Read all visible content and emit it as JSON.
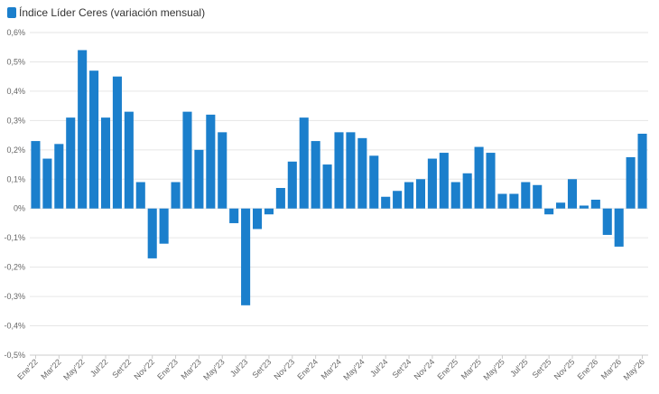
{
  "colors": {
    "bar": "#1b7fcc",
    "grid": "#e6e6e6",
    "axis": "#cccccc",
    "text": "#666666"
  },
  "chart_data": {
    "type": "bar",
    "legend": {
      "label": "Índice Líder Ceres (variación mensual)",
      "position": "top-left"
    },
    "grid": true,
    "ylim": [
      -0.5,
      0.6
    ],
    "yticks": [
      {
        "value": 0.6,
        "label": "0,6%"
      },
      {
        "value": 0.5,
        "label": "0,5%"
      },
      {
        "value": 0.4,
        "label": "0,4%"
      },
      {
        "value": 0.3,
        "label": "0,3%"
      },
      {
        "value": 0.2,
        "label": "0,2%"
      },
      {
        "value": 0.1,
        "label": "0,1%"
      },
      {
        "value": 0,
        "label": "0%"
      },
      {
        "value": -0.1,
        "label": "-0,1%"
      },
      {
        "value": -0.2,
        "label": "-0,2%"
      },
      {
        "value": -0.3,
        "label": "-0,3%"
      },
      {
        "value": -0.4,
        "label": "-0,4%"
      },
      {
        "value": -0.5,
        "label": "-0,5%"
      }
    ],
    "categories": [
      "Ene'22",
      "Feb'22",
      "Mar'22",
      "Abr'22",
      "May'22",
      "Jun'22",
      "Jul'22",
      "Ago'22",
      "Set'22",
      "Oct'22",
      "Nov'22",
      "Dic'22",
      "Ene'23",
      "Feb'23",
      "Mar'23",
      "Abr'23",
      "May'23",
      "Jun'23",
      "Jul'23",
      "Ago'23",
      "Set'23",
      "Oct'23",
      "Nov'23",
      "Dic'23",
      "Ene'24",
      "Feb'24",
      "Mar'24",
      "Abr'24",
      "May'24",
      "Jun'24",
      "Jul'24",
      "Ago'24",
      "Set'24",
      "Oct'24",
      "Nov'24",
      "Dic'24",
      "Ene'25",
      "Feb'25",
      "Mar'25",
      "Abr'25",
      "May'25",
      "Jun'25",
      "Jul'25",
      "Ago'25",
      "Set'25",
      "Oct'25",
      "Nov'25",
      "Dic'25",
      "Ene'26",
      "Feb'26",
      "Mar'26",
      "Abr'26",
      "May'26"
    ],
    "x_tick_labels": [
      "Ene'22",
      "Mar'22",
      "May'22",
      "Jul'22",
      "Set'22",
      "Nov'22",
      "Ene'23",
      "Mar'23",
      "May'23",
      "Jul'23",
      "Set'23",
      "Nov'23",
      "Ene'24",
      "Mar'24",
      "May'24",
      "Jul'24",
      "Set'24",
      "Nov'24",
      "Ene'25",
      "Mar'25",
      "May'25",
      "Jul'25",
      "Set'25",
      "Nov'25",
      "Ene'26",
      "Mar'26",
      "May'26"
    ],
    "series": [
      {
        "values": [
          0.23,
          0.17,
          0.22,
          0.31,
          0.54,
          0.47,
          0.31,
          0.45,
          0.33,
          0.09,
          -0.17,
          -0.12,
          0.09,
          0.33,
          0.2,
          0.32,
          0.26,
          -0.05,
          -0.33,
          -0.07,
          -0.02,
          0.07,
          0.16,
          0.31,
          0.23,
          0.15,
          0.26,
          0.26,
          0.24,
          0.18,
          0.04,
          0.06,
          0.09,
          0.1,
          0.17,
          0.19,
          0.09,
          0.12,
          0.21,
          0.19,
          0.05,
          0.05,
          0.09,
          0.08,
          -0.02,
          0.02,
          0.1,
          0.01,
          0.03,
          -0.09,
          -0.13,
          0.175,
          0.255
        ]
      }
    ]
  }
}
